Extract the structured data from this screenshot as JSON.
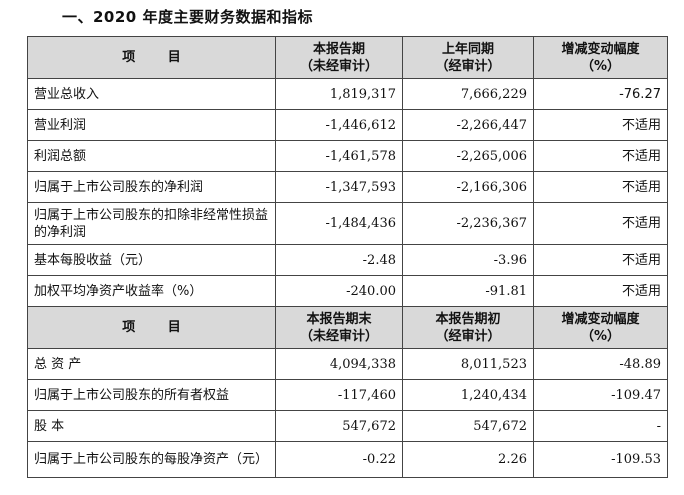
{
  "title": "一、2020 年度主要财务数据和指标",
  "header1": {
    "item": "项 目",
    "col2": [
      "本报告期",
      "（未经审计）"
    ],
    "col3": [
      "上年同期",
      "（经审计）"
    ],
    "col4": [
      "增减变动幅度",
      "（%）"
    ]
  },
  "rows1": [
    {
      "label": "营业总收入",
      "current": "1,819,317",
      "prior": "7,666,229",
      "change": "-76.27"
    },
    {
      "label": "营业利润",
      "current": "-1,446,612",
      "prior": "-2,266,447",
      "change": "不适用"
    },
    {
      "label": "利润总额",
      "current": "-1,461,578",
      "prior": "-2,265,006",
      "change": "不适用"
    },
    {
      "label": "归属于上市公司股东的净利润",
      "current": "-1,347,593",
      "prior": "-2,166,306",
      "change": "不适用"
    },
    {
      "label": "归属于上市公司股东的扣除非经常性损益的净利润",
      "current": "-1,484,436",
      "prior": "-2,236,367",
      "change": "不适用"
    },
    {
      "label": "基本每股收益（元）",
      "current": "-2.48",
      "prior": "-3.96",
      "change": "不适用"
    },
    {
      "label": "加权平均净资产收益率（%）",
      "current": "-240.00",
      "prior": "-91.81",
      "change": "不适用"
    }
  ],
  "header2": {
    "item": "项 目",
    "col2": [
      "本报告期末",
      "（未经审计）"
    ],
    "col3": [
      "本报告期初",
      "（经审计）"
    ],
    "col4": [
      "增减变动幅度",
      "（%）"
    ]
  },
  "rows2": [
    {
      "label": "总 资 产",
      "current": "4,094,338",
      "prior": "8,011,523",
      "change": "-48.89"
    },
    {
      "label": "归属于上市公司股东的所有者权益",
      "current": "-117,460",
      "prior": "1,240,434",
      "change": "-109.47"
    },
    {
      "label": "股 本",
      "current": "547,672",
      "prior": "547,672",
      "change": "-"
    },
    {
      "label": "归属于上市公司股东的每股净资产（元）",
      "current": "-0.22",
      "prior": "2.26",
      "change": "-109.53"
    }
  ]
}
